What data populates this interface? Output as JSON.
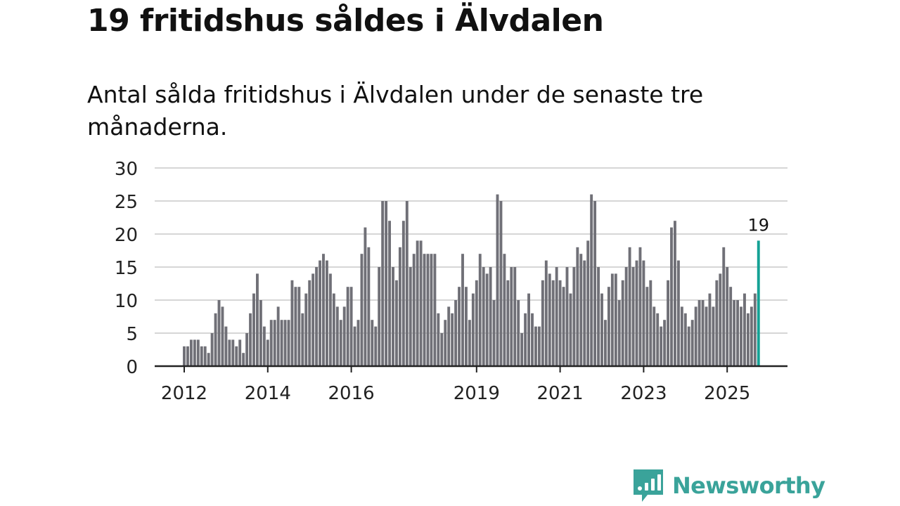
{
  "title": "19 fritidshus såldes i Älvdalen",
  "subtitle": "Antal sålda fritidshus i Älvdalen under de senaste tre månaderna.",
  "brand": {
    "name": "Newsworthy",
    "color": "#3aa39a",
    "icon": "newsworthy-logo-icon"
  },
  "colors": {
    "bar": "#707077",
    "highlight": "#14a195",
    "grid": "#d6d6d6",
    "axis": "#222222"
  },
  "chart_data": {
    "type": "bar",
    "title": "19 fritidshus såldes i Älvdalen",
    "xlabel": "",
    "ylabel": "",
    "ylim": [
      0,
      30
    ],
    "yticks": [
      0,
      5,
      10,
      15,
      20,
      25,
      30
    ],
    "xticks": [
      {
        "label": "2012",
        "index": 0
      },
      {
        "label": "2014",
        "index": 24
      },
      {
        "label": "2016",
        "index": 48
      },
      {
        "label": "2019",
        "index": 84
      },
      {
        "label": "2021",
        "index": 108
      },
      {
        "label": "2023",
        "index": 132
      },
      {
        "label": "2025",
        "index": 156
      }
    ],
    "start": "2012-01",
    "grid": true,
    "annotation": {
      "text": "19",
      "index": 165
    },
    "values": [
      3,
      3,
      4,
      4,
      4,
      3,
      3,
      2,
      5,
      8,
      10,
      9,
      6,
      4,
      4,
      3,
      4,
      2,
      5,
      8,
      11,
      14,
      10,
      6,
      4,
      7,
      7,
      9,
      7,
      7,
      7,
      13,
      12,
      12,
      8,
      11,
      13,
      14,
      15,
      16,
      17,
      16,
      14,
      11,
      9,
      7,
      9,
      12,
      12,
      6,
      7,
      17,
      21,
      18,
      7,
      6,
      15,
      25,
      25,
      22,
      15,
      13,
      18,
      22,
      25,
      15,
      17,
      19,
      19,
      17,
      17,
      17,
      17,
      8,
      5,
      7,
      9,
      8,
      10,
      12,
      17,
      12,
      7,
      11,
      13,
      17,
      15,
      14,
      15,
      10,
      26,
      25,
      17,
      13,
      15,
      15,
      10,
      5,
      8,
      11,
      8,
      6,
      6,
      13,
      16,
      14,
      13,
      15,
      13,
      12,
      15,
      11,
      15,
      18,
      17,
      16,
      19,
      26,
      25,
      15,
      11,
      7,
      12,
      14,
      14,
      10,
      13,
      15,
      18,
      15,
      16,
      18,
      16,
      12,
      13,
      9,
      8,
      6,
      7,
      13,
      21,
      22,
      16,
      9,
      8,
      6,
      7,
      9,
      10,
      10,
      9,
      11,
      9,
      13,
      14,
      18,
      15,
      12,
      10,
      10,
      9,
      11,
      8,
      9,
      11,
      19
    ]
  }
}
